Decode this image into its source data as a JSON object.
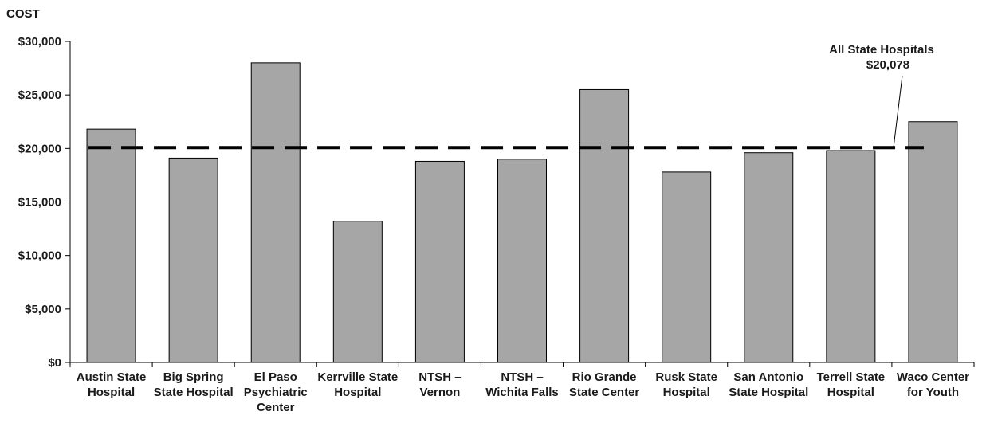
{
  "chart_data": {
    "type": "bar",
    "ylabel": "COST",
    "ylim": [
      0,
      30000
    ],
    "yticks": [
      {
        "value": 0,
        "label": "$0"
      },
      {
        "value": 5000,
        "label": "$5,000"
      },
      {
        "value": 10000,
        "label": "$10,000"
      },
      {
        "value": 15000,
        "label": "$15,000"
      },
      {
        "value": 20000,
        "label": "$20,000"
      },
      {
        "value": 25000,
        "label": "$25,000"
      },
      {
        "value": 30000,
        "label": "$30,000"
      }
    ],
    "categories": [
      [
        "Austin State",
        "Hospital"
      ],
      [
        "Big Spring",
        "State Hospital"
      ],
      [
        "El Paso",
        "Psychiatric",
        "Center"
      ],
      [
        "Kerrville State",
        "Hospital"
      ],
      [
        "NTSH –",
        "Vernon"
      ],
      [
        "NTSH –",
        "Wichita Falls"
      ],
      [
        "Rio Grande",
        "State Center"
      ],
      [
        "Rusk State",
        "Hospital"
      ],
      [
        "San Antonio",
        "State Hospital"
      ],
      [
        "Terrell State",
        "Hospital"
      ],
      [
        "Waco Center",
        "for Youth"
      ]
    ],
    "values": [
      21800,
      19100,
      28000,
      13200,
      18800,
      19000,
      25500,
      17800,
      19600,
      19800,
      22500
    ],
    "bar_color": "#a6a6a6",
    "bar_stroke": "#000000",
    "reference_line": {
      "value": 20078,
      "style": "dashed",
      "color": "#000000",
      "label_lines": [
        "All State Hospitals",
        "$20,078"
      ]
    },
    "grid": false,
    "legend": "none"
  }
}
